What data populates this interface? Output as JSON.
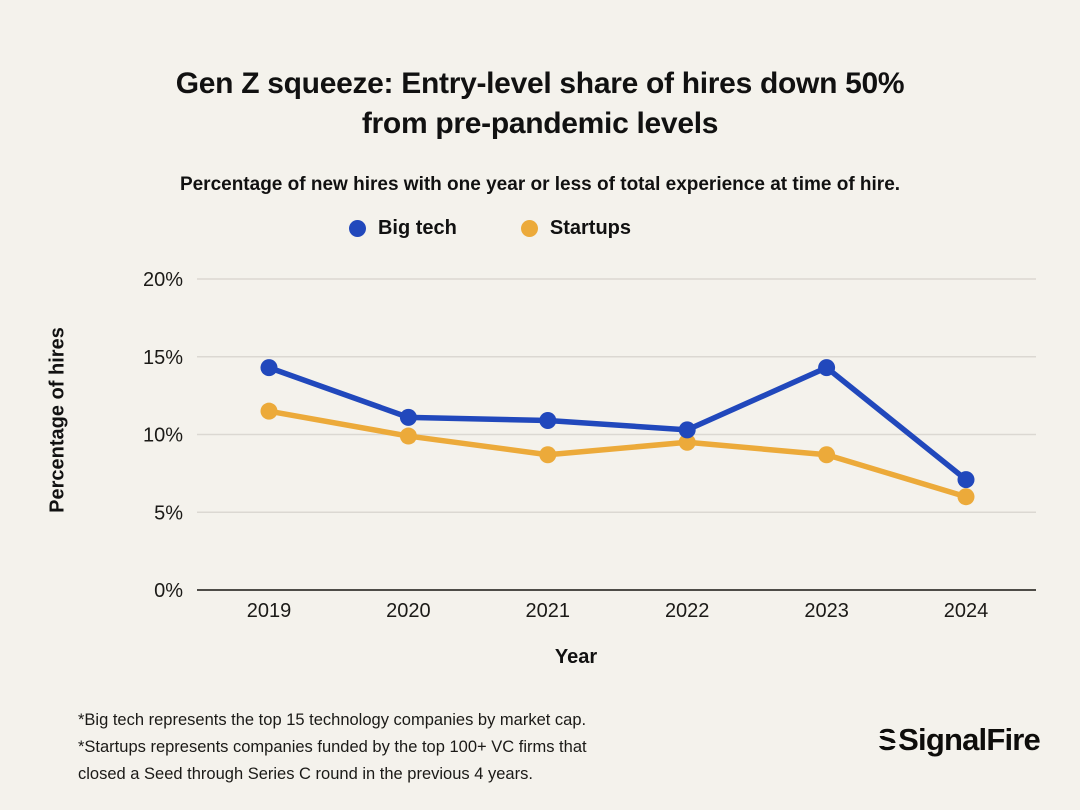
{
  "header": {
    "title_line1": "Gen Z squeeze: Entry-level share of hires down 50%",
    "title_line2": "from pre-pandemic levels",
    "subtitle": "Percentage of new hires with one year or less of total experience at time of hire."
  },
  "chart_data": {
    "type": "line",
    "title": "Gen Z squeeze: Entry-level share of hires down 50% from pre-pandemic levels",
    "x": [
      "2019",
      "2020",
      "2021",
      "2022",
      "2023",
      "2024"
    ],
    "series": [
      {
        "name": "Big tech",
        "color": "#2148bc",
        "values": [
          14.3,
          11.1,
          10.9,
          10.3,
          14.3,
          7.1
        ]
      },
      {
        "name": "Startups",
        "color": "#ecaa3a",
        "values": [
          11.5,
          9.9,
          8.7,
          9.5,
          8.7,
          6.0
        ]
      }
    ],
    "xlabel": "Year",
    "ylabel": "Percentage of hires",
    "ylim": [
      0,
      20
    ],
    "yticks": [
      0,
      5,
      10,
      15,
      20
    ],
    "ytick_labels": [
      "0%",
      "5%",
      "10%",
      "15%",
      "20%"
    ],
    "grid": true,
    "legend_position": "top-center"
  },
  "footnotes": [
    "*Big tech represents the top 15 technology companies by market cap.",
    "*Startups represents companies funded by the top 100+ VC firms that",
    "closed a Seed through Series C round in the previous 4 years."
  ],
  "branding": {
    "logo_text": "SignalFire",
    "logo_mark_letter": "S"
  },
  "colors": {
    "background": "#f4f2ec",
    "text": "#111111",
    "gridline": "#dbd8d2",
    "axis_line": "#4e4c47",
    "big_tech": "#2148bc",
    "startups": "#ecaa3a"
  }
}
